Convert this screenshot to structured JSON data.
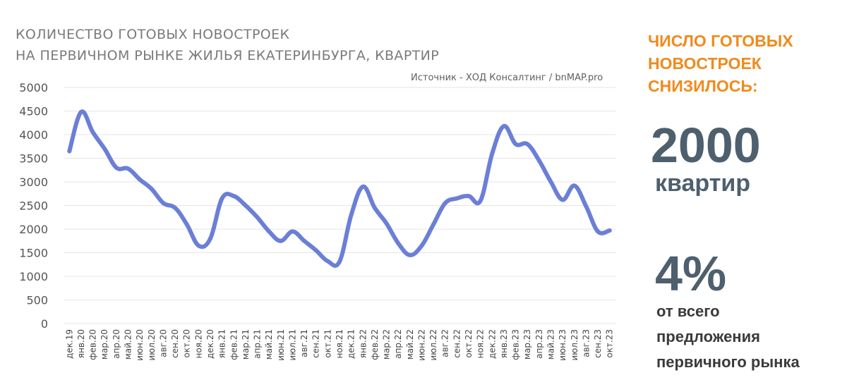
{
  "chart_data": {
    "type": "line",
    "title_line1": "КОЛИЧЕСТВО ГОТОВЫХ НОВОСТРОЕК",
    "title_line2": "НА ПЕРВИЧНОМ РЫНКЕ ЖИЛЬЯ ЕКАТЕРИНБУРГА,  КВАРТИР",
    "source": "Источник - ХОД Консалтинг / bnMAP.pro",
    "xlabel": "",
    "ylabel": "",
    "ylim": [
      0,
      5000
    ],
    "yticks": [
      "5000",
      "4500",
      "4000",
      "3500",
      "3000",
      "2500",
      "2000",
      "1500",
      "1000",
      "500",
      "0"
    ],
    "grid": true,
    "color": "#6b7fd7",
    "categories": [
      "дек.19",
      "янв.20",
      "фев.20",
      "мар.20",
      "апр.20",
      "май.20",
      "июн.20",
      "июл.20",
      "авг.20",
      "сен.20",
      "окт.20",
      "ноя.20",
      "дек.20",
      "янв.21",
      "фев.21",
      "мар.21",
      "апр.21",
      "май.21",
      "июн.21",
      "июл.21",
      "авг.21",
      "сен.21",
      "окт.21",
      "ноя.21",
      "дек.21",
      "янв.22",
      "фев.22",
      "мар.22",
      "апр.22",
      "май.22",
      "июн.22",
      "июл.22",
      "авг.22",
      "сен.22",
      "окт.22",
      "ноя.22",
      "дек.22",
      "янв.23",
      "фев.23",
      "мар.23",
      "апр.23",
      "май.23",
      "июн.23",
      "июл.23",
      "авг.23",
      "сен.23",
      "окт.23"
    ],
    "values": [
      3650,
      4480,
      4050,
      3700,
      3300,
      3280,
      3050,
      2850,
      2550,
      2450,
      2100,
      1650,
      1800,
      2650,
      2700,
      2500,
      2250,
      1950,
      1750,
      1950,
      1750,
      1550,
      1320,
      1310,
      2300,
      2900,
      2450,
      2120,
      1700,
      1450,
      1650,
      2100,
      2550,
      2650,
      2700,
      2600,
      3600,
      4180,
      3800,
      3800,
      3450,
      3000,
      2620,
      2920,
      2480,
      1950,
      1970
    ]
  },
  "sidebar": {
    "heading": [
      "ЧИСЛО ГОТОВЫХ",
      "НОВОСТРОЕК",
      "СНИЗИЛОСЬ:"
    ],
    "value1": "2000",
    "unit1": "квартир",
    "value2": "4%",
    "unit2": "от всего\nпредложения\nпервичного рынка"
  }
}
